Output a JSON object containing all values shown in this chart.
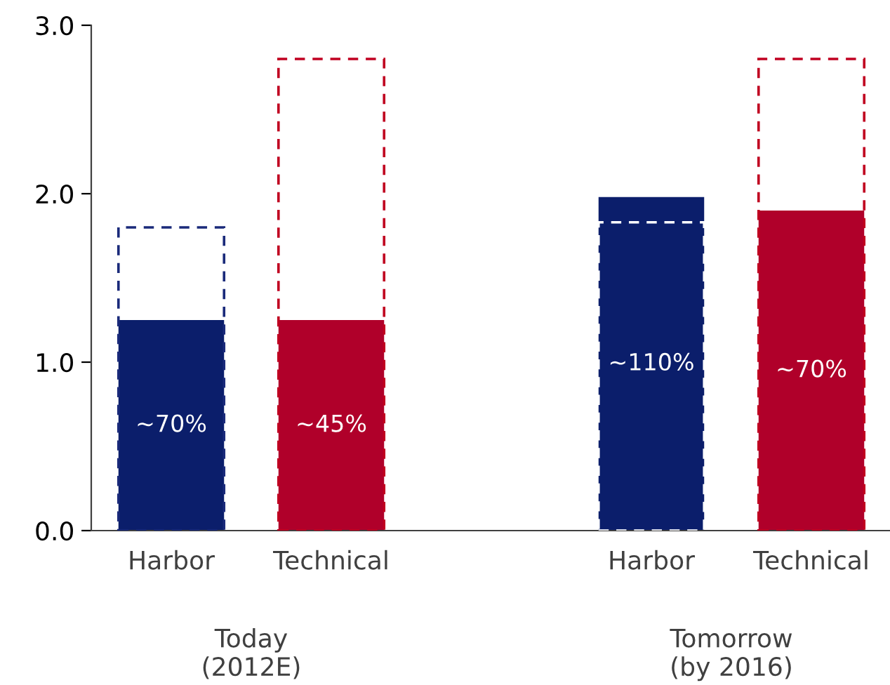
{
  "chart_data": {
    "type": "bar",
    "categories": [
      "Harbor",
      "Technical",
      null,
      "Harbor",
      "Technical"
    ],
    "series": [
      {
        "colors": [
          "#0b1e6b",
          "#b0002a",
          null,
          "#0b1e6b",
          "#b0002a"
        ],
        "values": [
          1.25,
          1.25,
          null,
          1.98,
          1.9
        ]
      },
      {
        "type": "bar",
        "line_style": "dashed",
        "colors": [
          "#1a2a7a",
          "#c00020",
          null,
          "#ffffff",
          "#c00020"
        ],
        "values": [
          1.8,
          2.8,
          null,
          1.83,
          2.8
        ]
      }
    ],
    "ylim": [
      0,
      3.0
    ],
    "yticks": [
      {
        "value": 0,
        "label": "0.0"
      },
      {
        "value": 1,
        "label": "1.0"
      },
      {
        "value": 2,
        "label": "2.0"
      },
      {
        "value": 3,
        "label": "3.0"
      }
    ],
    "annotations": [
      "Today\n(2012E)",
      "Tomorrow\n(by 2016)",
      "~70%",
      "~45%",
      "~110%",
      "~70%"
    ],
    "grid": false,
    "legend": false
  }
}
